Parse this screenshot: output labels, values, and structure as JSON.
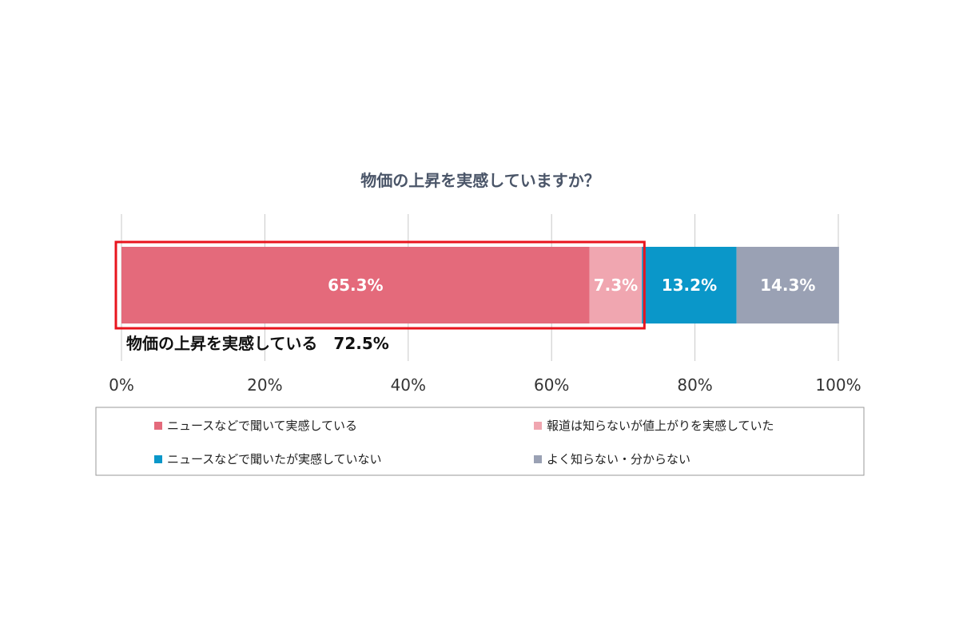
{
  "chart_data": {
    "type": "bar",
    "orientation": "horizontal",
    "stacked": true,
    "title": "物価の上昇を実感していますか？",
    "xlim": [
      0,
      100
    ],
    "ticks": [
      "0%",
      "20%",
      "40%",
      "60%",
      "80%",
      "100%"
    ],
    "grid": true,
    "legend_position": "bottom",
    "series": [
      {
        "name": "ニュースなどで聞いて実感している",
        "value": 65.3,
        "label": "65.3%",
        "color": "#e46a7b"
      },
      {
        "name": "報道は知らないが値上がりを実感していた",
        "value": 7.3,
        "label": "7.3%",
        "color": "#f0a6b0"
      },
      {
        "name": "ニュースなどで聞いたが実感していない",
        "value": 13.2,
        "label": "13.2%",
        "color": "#0a97c9"
      },
      {
        "name": "よく知らない・分からない",
        "value": 14.3,
        "label": "14.3%",
        "color": "#9aa1b4"
      }
    ],
    "annotation": {
      "text": "物価の上昇を実感している　72.5%",
      "highlight_value": 72.5,
      "highlight_color": "#e8141e"
    }
  }
}
